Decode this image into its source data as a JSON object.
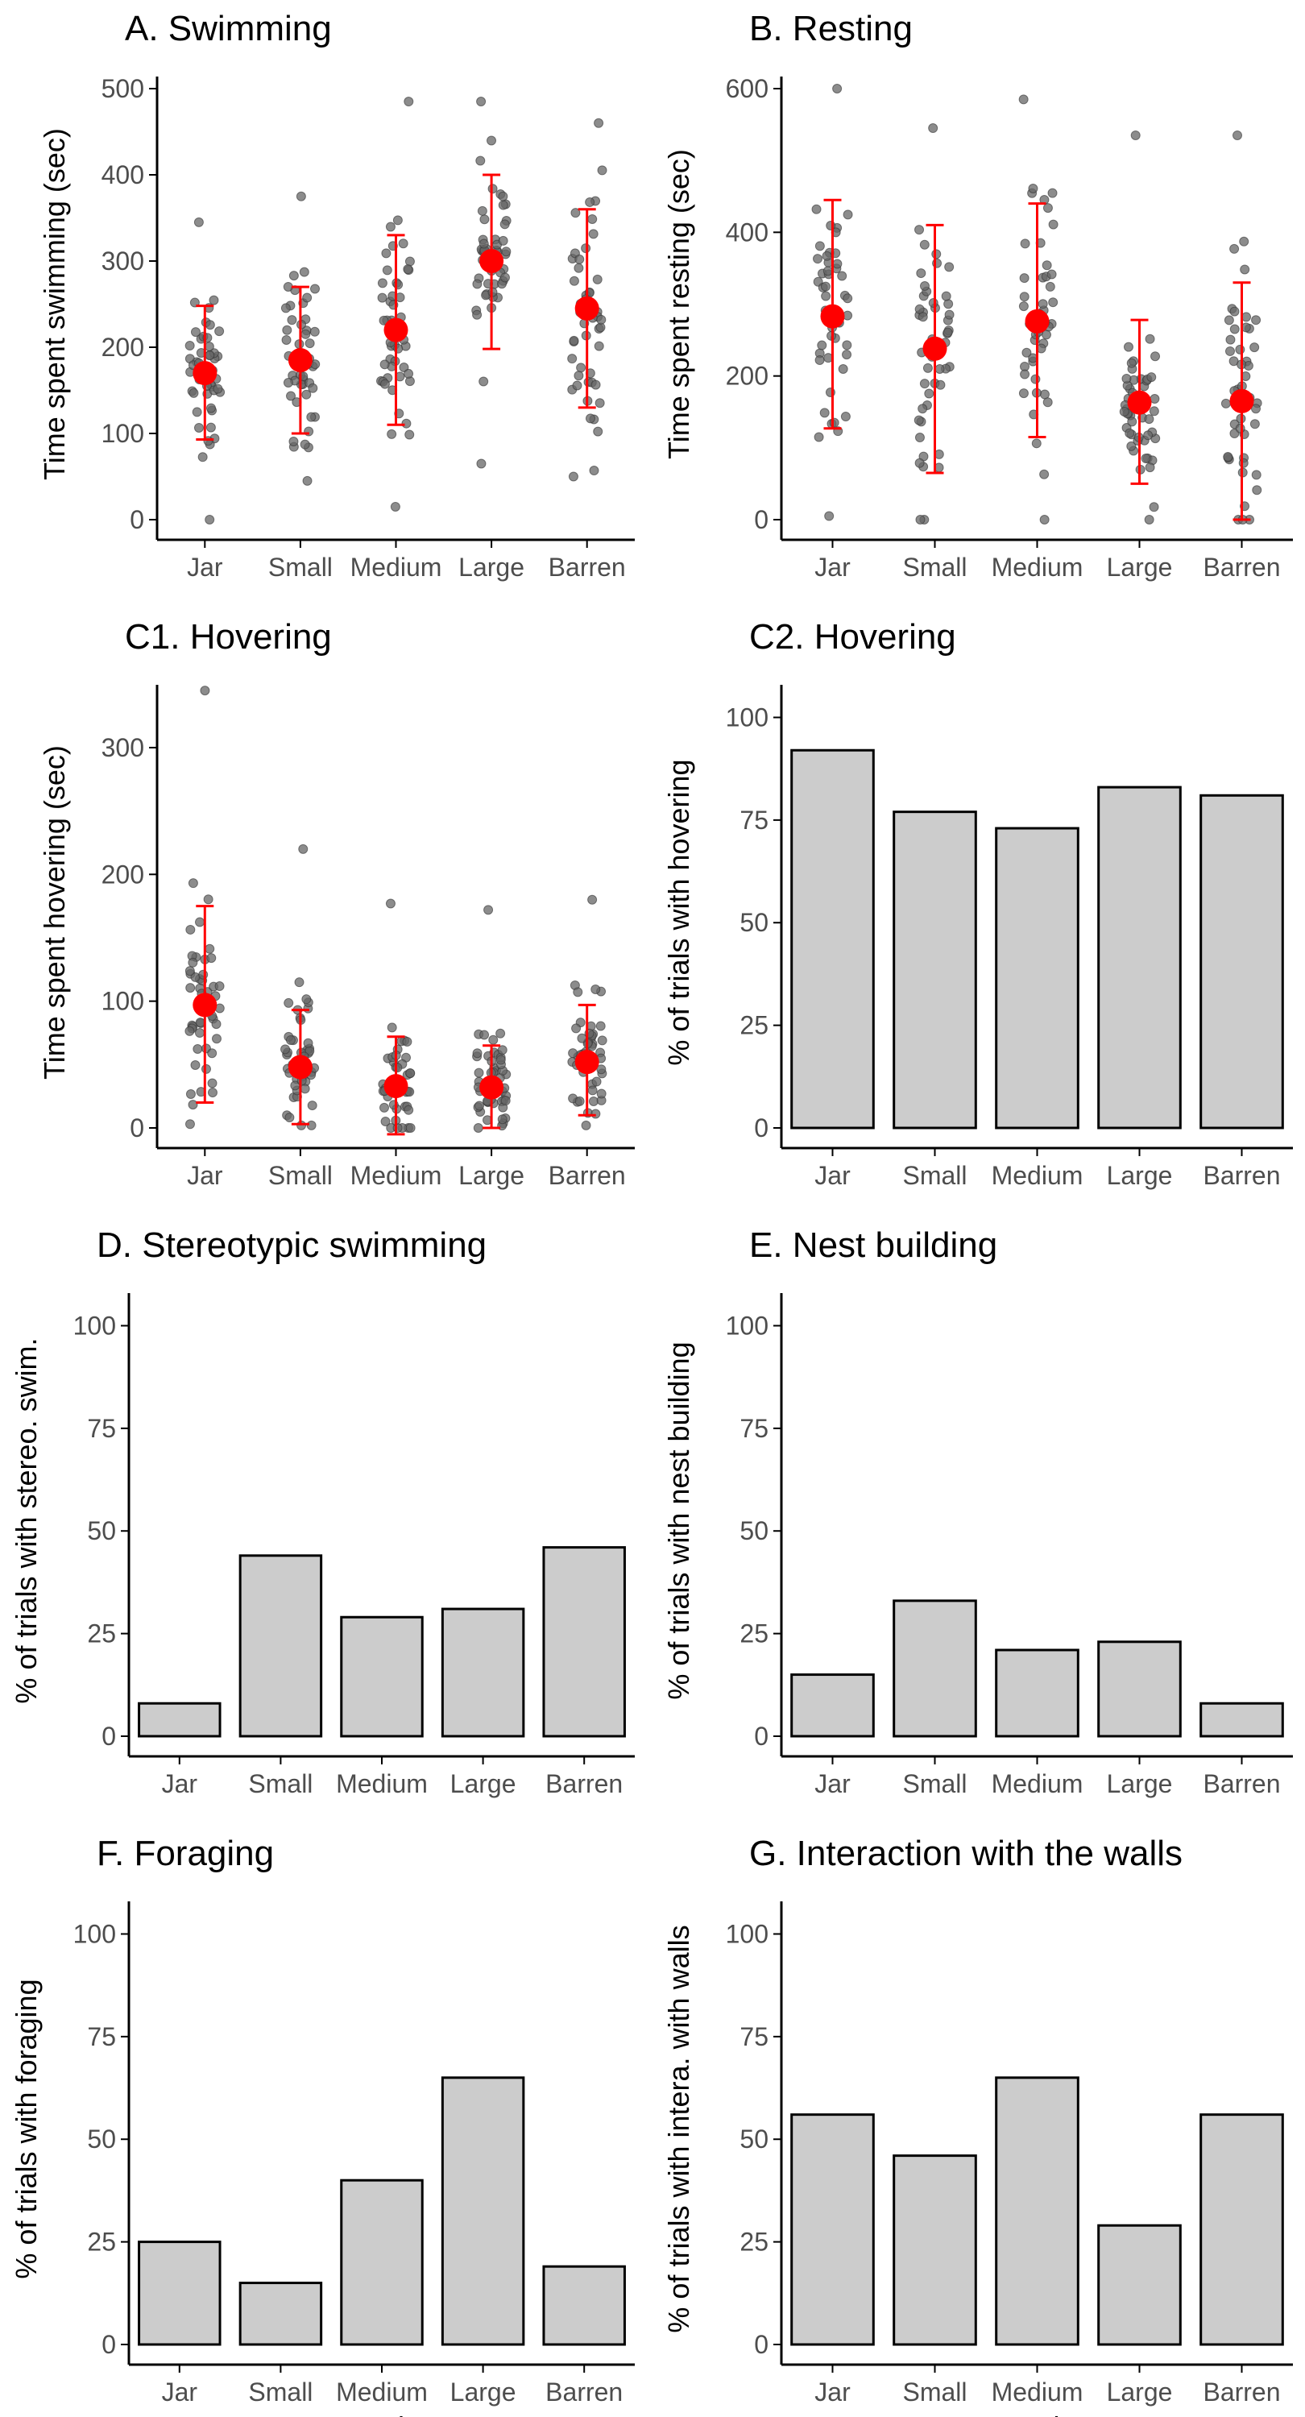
{
  "colors": {
    "bar_fill": "#cccccc",
    "bar_stroke": "#000000",
    "mean_point": "#ff0000",
    "raw_point": "#666666",
    "axis": "#000000"
  },
  "chart_data": [
    {
      "id": "A",
      "type": "scatter",
      "title": "A. Swimming",
      "xlabel": "",
      "ylabel": "Time spent swimming (sec)",
      "categories": [
        "Jar",
        "Small",
        "Medium",
        "Large",
        "Barren"
      ],
      "ylim": [
        0,
        500
      ],
      "yticks": [
        0,
        100,
        200,
        300,
        400,
        500
      ],
      "grid": false,
      "means": [
        170,
        185,
        220,
        300,
        245
      ],
      "error_low": [
        93,
        100,
        110,
        198,
        130
      ],
      "error_high": [
        248,
        270,
        330,
        400,
        360
      ],
      "raw_points_range": [
        [
          0,
          345
        ],
        [
          45,
          375
        ],
        [
          15,
          485
        ],
        [
          65,
          485
        ],
        [
          50,
          460
        ]
      ]
    },
    {
      "id": "B",
      "type": "scatter",
      "title": "B. Resting",
      "xlabel": "",
      "ylabel": "Time spent resting (sec)",
      "categories": [
        "Jar",
        "Small",
        "Medium",
        "Large",
        "Barren"
      ],
      "ylim": [
        0,
        600
      ],
      "yticks": [
        0,
        200,
        400,
        600
      ],
      "grid": false,
      "means": [
        283,
        238,
        276,
        163,
        165
      ],
      "error_low": [
        127,
        65,
        115,
        50,
        0
      ],
      "error_high": [
        445,
        410,
        440,
        278,
        330
      ],
      "raw_points_range": [
        [
          5,
          600
        ],
        [
          0,
          545
        ],
        [
          0,
          585
        ],
        [
          0,
          535
        ],
        [
          0,
          535
        ]
      ]
    },
    {
      "id": "C1",
      "type": "scatter",
      "title": "C1. Hovering",
      "xlabel": "",
      "ylabel": "Time spent hovering (sec)",
      "categories": [
        "Jar",
        "Small",
        "Medium",
        "Large",
        "Barren"
      ],
      "ylim": [
        0,
        340
      ],
      "yticks": [
        0,
        100,
        200,
        300
      ],
      "grid": false,
      "means": [
        97,
        48,
        33,
        32,
        52
      ],
      "error_low": [
        20,
        3,
        -5,
        0,
        10
      ],
      "error_high": [
        175,
        93,
        72,
        65,
        97
      ],
      "raw_points_range": [
        [
          3,
          345
        ],
        [
          2,
          220
        ],
        [
          0,
          177
        ],
        [
          0,
          172
        ],
        [
          2,
          180
        ]
      ]
    },
    {
      "id": "C2",
      "type": "bar",
      "title": "C2. Hovering",
      "xlabel": "",
      "ylabel": "% of trials with hovering",
      "categories": [
        "Jar",
        "Small",
        "Medium",
        "Large",
        "Barren"
      ],
      "values": [
        92,
        77,
        73,
        83,
        81
      ],
      "ylim": [
        0,
        105
      ],
      "yticks": [
        0,
        25,
        50,
        75,
        100
      ],
      "grid": false
    },
    {
      "id": "D",
      "type": "bar",
      "title": "D. Stereotypic swimming",
      "xlabel": "",
      "ylabel": "% of trials with stereo. swim.",
      "categories": [
        "Jar",
        "Small",
        "Medium",
        "Large",
        "Barren"
      ],
      "values": [
        8,
        44,
        29,
        31,
        46
      ],
      "ylim": [
        0,
        105
      ],
      "yticks": [
        0,
        25,
        50,
        75,
        100
      ],
      "grid": false
    },
    {
      "id": "E",
      "type": "bar",
      "title": "E. Nest building",
      "xlabel": "",
      "ylabel": "% of trials with nest building",
      "categories": [
        "Jar",
        "Small",
        "Medium",
        "Large",
        "Barren"
      ],
      "values": [
        15,
        33,
        21,
        23,
        8
      ],
      "ylim": [
        0,
        105
      ],
      "yticks": [
        0,
        25,
        50,
        75,
        100
      ],
      "grid": false
    },
    {
      "id": "F",
      "type": "bar",
      "title": "F. Foraging",
      "xlabel": "Tank",
      "ylabel": "% of trials with foraging",
      "categories": [
        "Jar",
        "Small",
        "Medium",
        "Large",
        "Barren"
      ],
      "values": [
        25,
        15,
        40,
        65,
        19
      ],
      "ylim": [
        0,
        105
      ],
      "yticks": [
        0,
        25,
        50,
        75,
        100
      ],
      "grid": false
    },
    {
      "id": "G",
      "type": "bar",
      "title": "G. Interaction with the walls",
      "xlabel": "Tank",
      "ylabel": "% of trials with intera. with walls",
      "categories": [
        "Jar",
        "Small",
        "Medium",
        "Large",
        "Barren"
      ],
      "values": [
        56,
        46,
        65,
        29,
        56
      ],
      "ylim": [
        0,
        105
      ],
      "yticks": [
        0,
        25,
        50,
        75,
        100
      ],
      "grid": false
    }
  ]
}
